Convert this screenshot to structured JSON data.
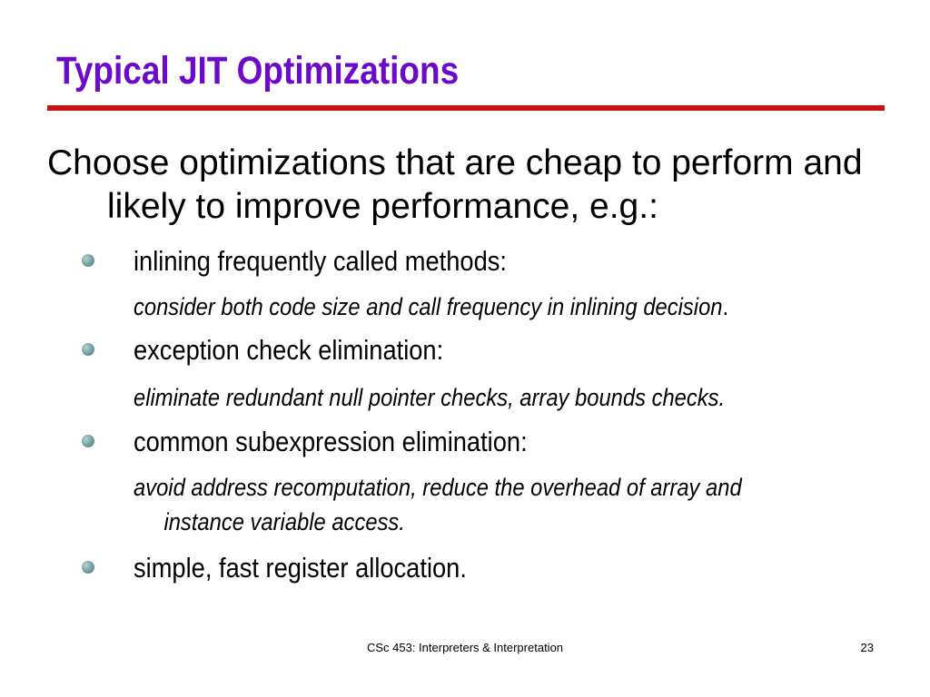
{
  "slide": {
    "title": "Typical JIT Optimizations",
    "intro": "Choose optimizations that are cheap to perform and likely to improve performance, e.g.:",
    "items": [
      {
        "label": "inlining frequently called methods:",
        "note": "consider both code size and call frequency in inlining decision",
        "note_suffix": "."
      },
      {
        "label": "exception check elimination:",
        "note": "eliminate redundant null pointer checks, array bounds checks."
      },
      {
        "label": "common subexpression elimination:",
        "note_line1": "avoid address recomputation, reduce the overhead of array and",
        "note_line2": "instance variable access."
      },
      {
        "label": "simple, fast register allocation."
      }
    ],
    "footer": {
      "course": "CSc 453: Interpreters & Interpretation",
      "page_number": "23"
    }
  },
  "colors": {
    "title": "#6b0ac9",
    "title_rule": "#c81414",
    "bullet": "#6f9c9c"
  },
  "icons": {
    "bullet": "bullet-dot-icon"
  }
}
